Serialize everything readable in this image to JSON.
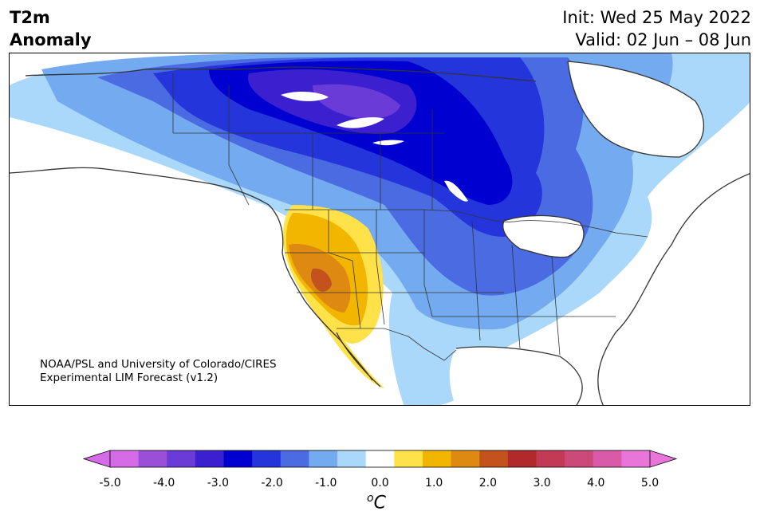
{
  "title": {
    "left_line1": "T2m",
    "left_line2": "Anomaly",
    "init": "Init: Wed 25 May 2022",
    "valid": "Valid: 02 Jun – 08 Jun"
  },
  "credit": {
    "line1": "NOAA/PSL and University of Colorado/CIRES",
    "line2": "Experimental LIM Forecast (v1.2)"
  },
  "colorbar": {
    "ticks": [
      "-5.0",
      "-4.0",
      "-3.0",
      "-2.0",
      "-1.0",
      "0.0",
      "1.0",
      "2.0",
      "3.0",
      "4.0",
      "5.0"
    ],
    "unit_sup": "o",
    "unit": "C",
    "colors": [
      "#d66be8",
      "#9b4fd8",
      "#6a3bd6",
      "#3c20cf",
      "#0000d0",
      "#2535dc",
      "#4a6be2",
      "#74aaf0",
      "#a9d8fa",
      "#ffffff",
      "#ffe24a",
      "#f2b600",
      "#de8a12",
      "#c4521c",
      "#b02a2a",
      "#c23a55",
      "#cc4a7a",
      "#d85aa8",
      "#e876d8"
    ],
    "extend_low": "#d66be8",
    "extend_high": "#e876d8"
  },
  "map": {
    "region": "North America",
    "field": "2m temperature anomaly",
    "palette": {
      "cold3": "#3c20cf",
      "cold2_5": "#0000d0",
      "cold2": "#2535dc",
      "cold1_5": "#4a6be2",
      "cold1": "#74aaf0",
      "cold0_5": "#a9d8fa",
      "warm0_5": "#ffe24a",
      "warm1": "#f2b600",
      "warm1_5": "#de8a12",
      "warm2": "#c4521c",
      "purple": "#6a3bd6"
    }
  }
}
